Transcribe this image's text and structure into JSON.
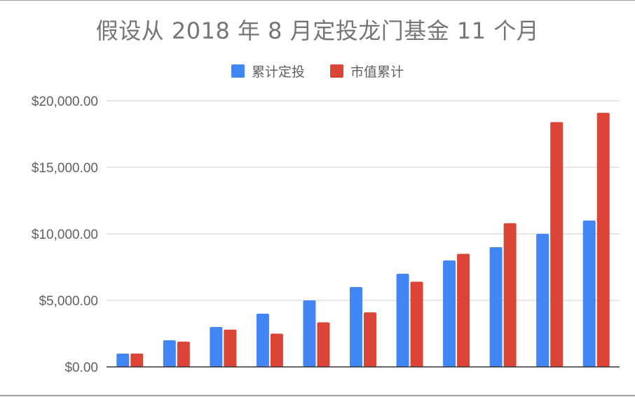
{
  "chart_data": {
    "type": "bar",
    "title": "假设从 2018 年 8 月定投龙门基金 11 个月",
    "categories": [
      "",
      "",
      "",
      "",
      "",
      "",
      "",
      "",
      "",
      "",
      ""
    ],
    "series": [
      {
        "name": "累计定投",
        "color": "#4285F4",
        "values": [
          1000,
          2000,
          3000,
          4000,
          5000,
          6000,
          7000,
          8000,
          9000,
          10000,
          11000
        ]
      },
      {
        "name": "市值累计",
        "color": "#DB4437",
        "values": [
          1000,
          1900,
          2800,
          2500,
          3350,
          4100,
          6400,
          8500,
          10800,
          18400,
          19100
        ]
      }
    ],
    "ylim": [
      0,
      20000
    ],
    "yticks": [
      {
        "value": 0,
        "label": "$0.00"
      },
      {
        "value": 5000,
        "label": "$5,000.00"
      },
      {
        "value": 10000,
        "label": "$10,000.00"
      },
      {
        "value": 15000,
        "label": "$15,000.00"
      },
      {
        "value": 20000,
        "label": "$20,000.00"
      }
    ],
    "grid": true,
    "legend_position": "top"
  }
}
